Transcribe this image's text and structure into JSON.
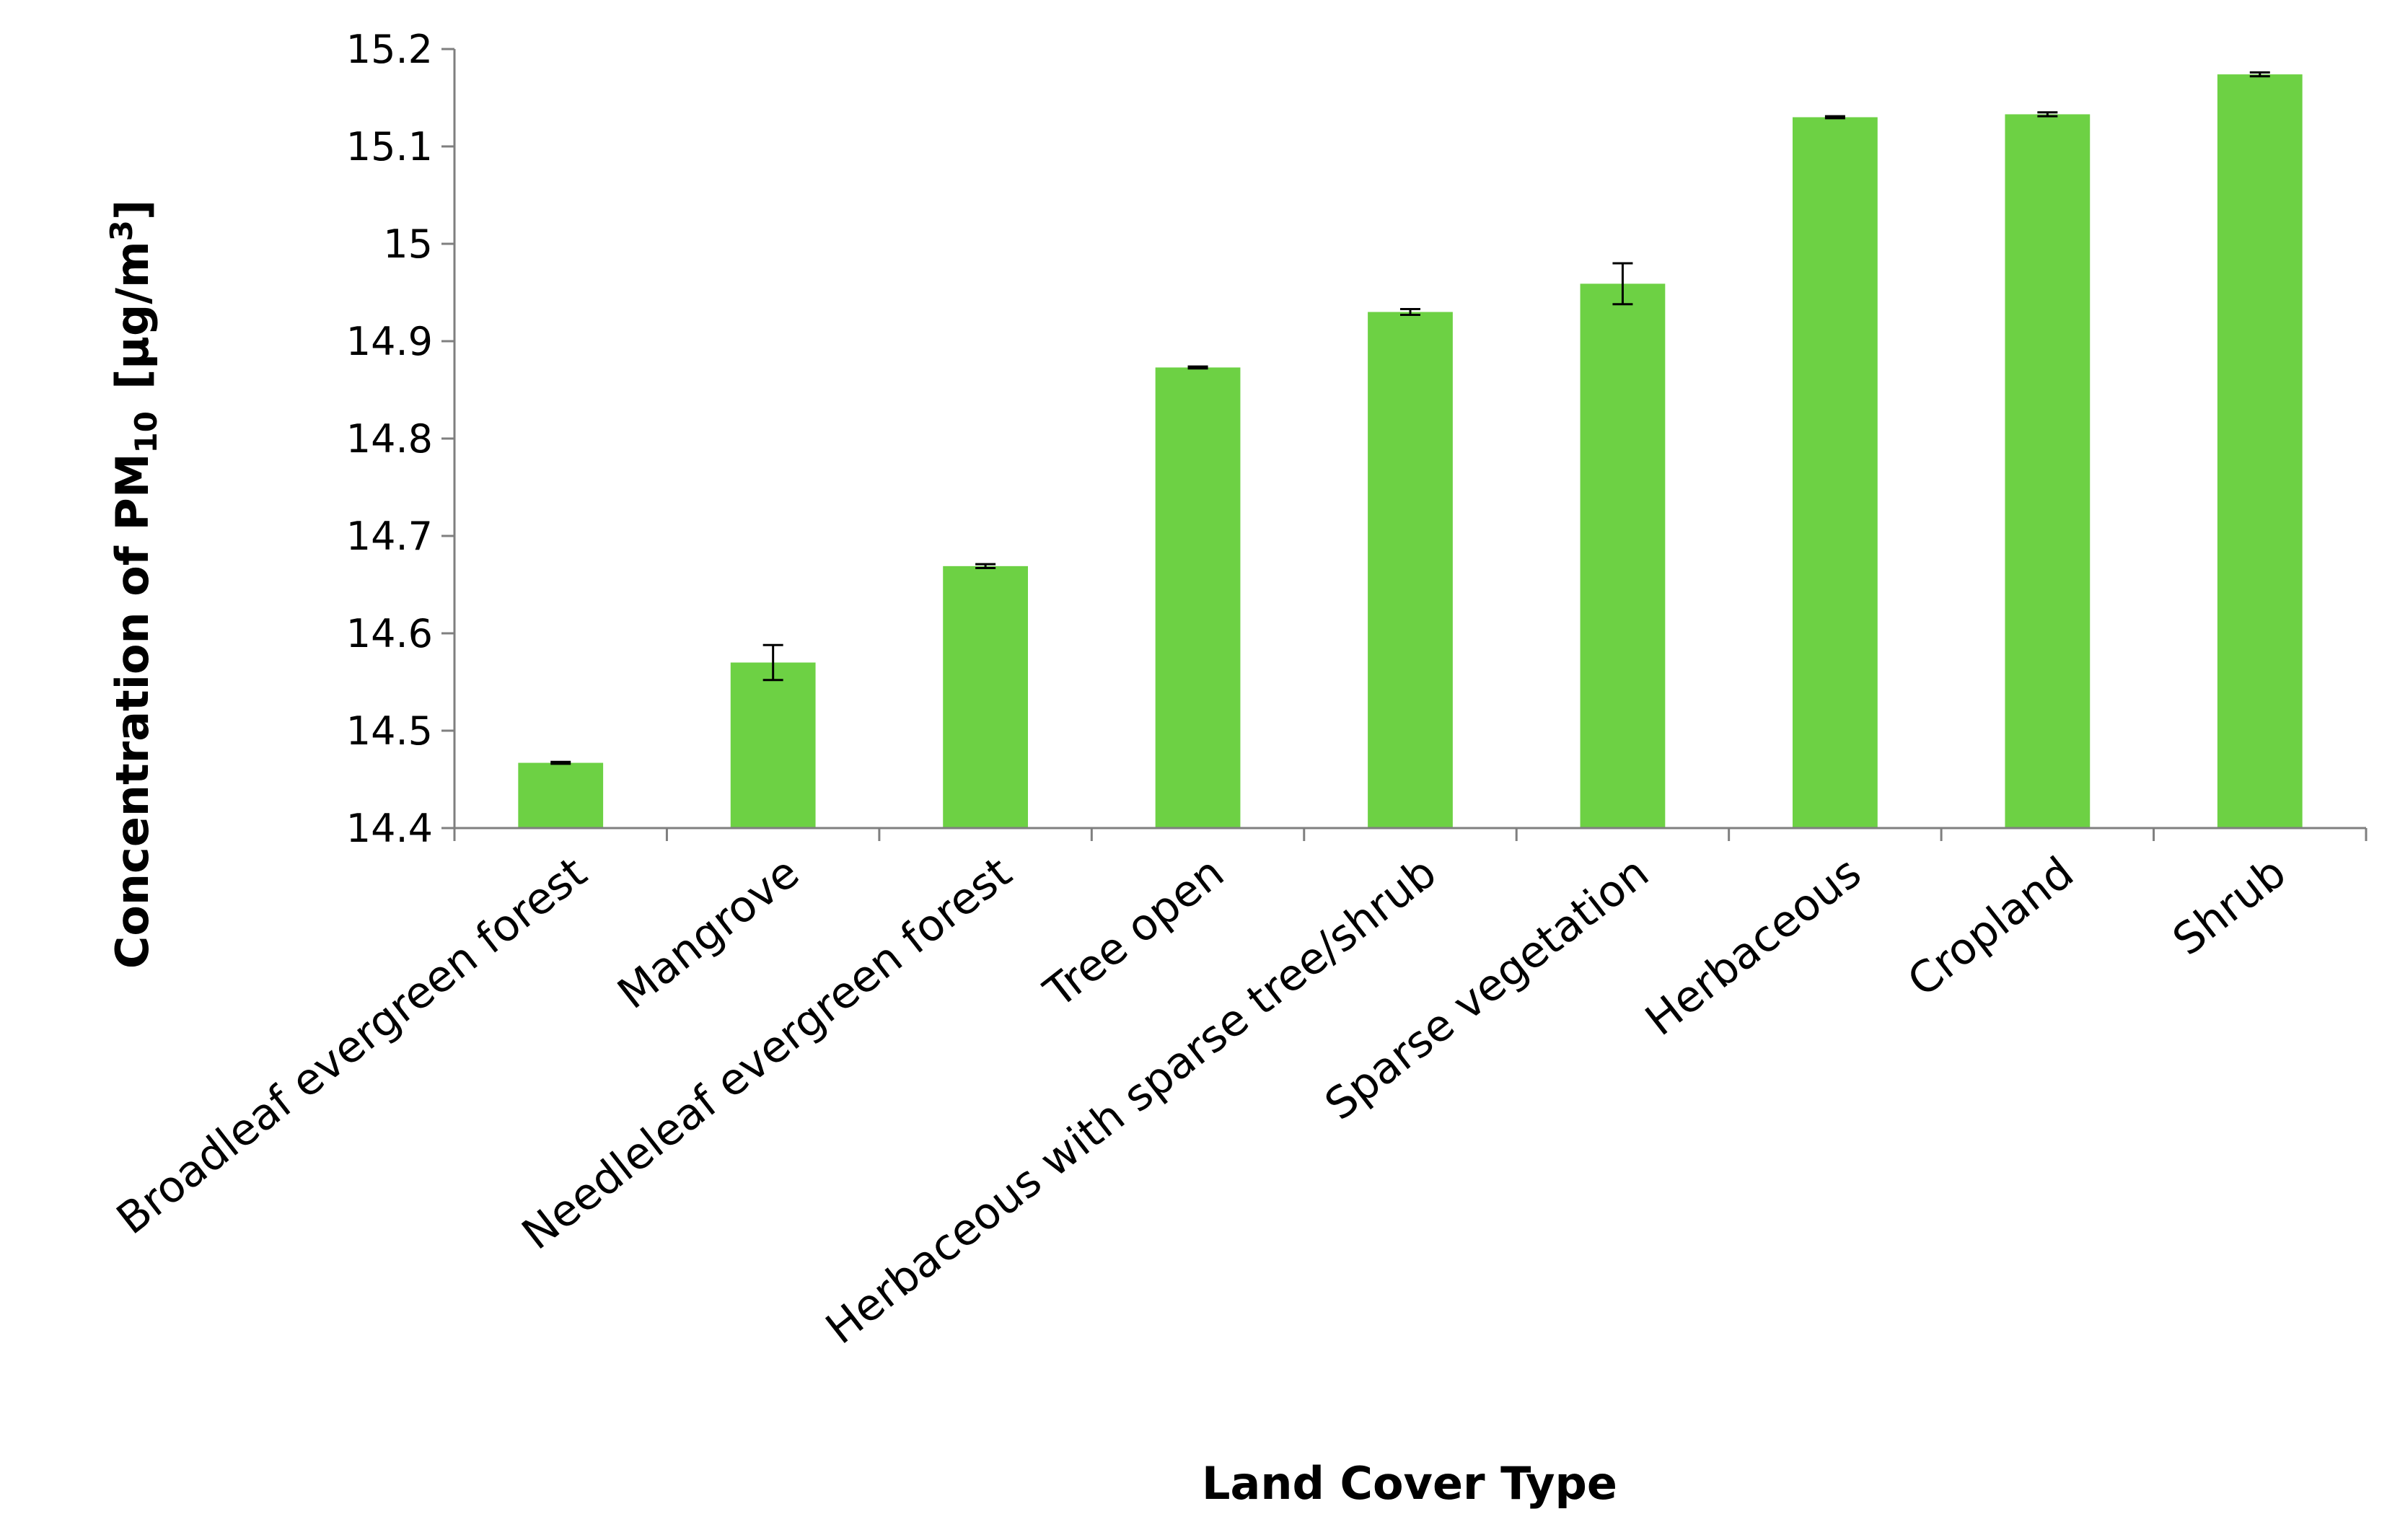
{
  "chart_data": {
    "type": "bar",
    "categories": [
      "Broadleaf evergreen forest",
      "Mangrove",
      "Needleleaf evergreen forest",
      "Tree open",
      "Herbaceous with sparse tree/shrub",
      "Sparse vegetation",
      "Herbaceous",
      "Cropland",
      "Shrub"
    ],
    "values": [
      14.467,
      14.57,
      14.669,
      14.873,
      14.93,
      14.959,
      15.13,
      15.133,
      15.174
    ],
    "errors": [
      0.001,
      0.018,
      0.002,
      0.001,
      0.003,
      0.021,
      0.001,
      0.002,
      0.002
    ],
    "xlabel": "Land Cover Type",
    "ylabel": {
      "prefix": "Concentration of PM",
      "subscript": "10",
      "unit_prefix": "[μg/m",
      "superscript": "3",
      "unit_suffix": "]"
    },
    "ylim": [
      14.4,
      15.2
    ],
    "yticks": [
      "14.4",
      "14.5",
      "14.6",
      "14.7",
      "14.8",
      "14.9",
      "15",
      "15.1",
      "15.2"
    ],
    "bar_color": "#6dd144",
    "grid": false,
    "legend": "none"
  }
}
